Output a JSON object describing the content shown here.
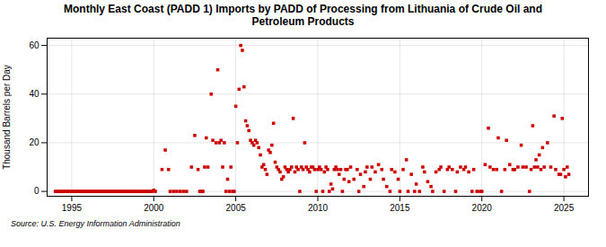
{
  "chart_data": {
    "type": "scatter",
    "title": "Monthly East Coast (PADD 1) Imports by PADD of Processing from Lithuania of Crude Oil and\nPetroleum Products",
    "ylabel": "Thousand Barrels per Day",
    "source": "Source: U.S. Energy Information Administration",
    "color": "#cc0000",
    "marker": "square",
    "grid": true,
    "xlim": [
      1993.5,
      2026.5
    ],
    "ylim": [
      -2,
      63
    ],
    "xticks": [
      1995,
      2000,
      2005,
      2010,
      2015,
      2020,
      2025
    ],
    "yticks": [
      0,
      20,
      40,
      60
    ],
    "x": [
      1994.0,
      1994.1,
      1994.2,
      1994.3,
      1994.4,
      1994.5,
      1994.6,
      1994.7,
      1994.8,
      1994.9,
      1995.0,
      1995.1,
      1995.2,
      1995.3,
      1995.4,
      1995.5,
      1995.6,
      1995.7,
      1995.8,
      1995.9,
      1996.0,
      1996.1,
      1996.2,
      1996.3,
      1996.4,
      1996.5,
      1996.6,
      1996.7,
      1996.8,
      1996.9,
      1997.0,
      1997.1,
      1997.2,
      1997.3,
      1997.4,
      1997.5,
      1997.6,
      1997.7,
      1997.8,
      1997.9,
      1998.0,
      1998.1,
      1998.2,
      1998.3,
      1998.4,
      1998.5,
      1998.6,
      1998.7,
      1998.8,
      1998.9,
      1999.0,
      1999.1,
      1999.2,
      1999.3,
      1999.4,
      1999.5,
      1999.6,
      1999.7,
      1999.8,
      1999.9,
      2000.0,
      2000.1,
      2000.5,
      2000.7,
      2000.9,
      2001.0,
      2001.2,
      2001.4,
      2001.6,
      2001.8,
      2002.0,
      2002.3,
      2002.5,
      2002.7,
      2002.8,
      2002.9,
      2003.0,
      2003.1,
      2003.2,
      2003.3,
      2003.5,
      2003.6,
      2003.8,
      2003.9,
      2004.0,
      2004.1,
      2004.2,
      2004.3,
      2004.4,
      2004.5,
      2004.6,
      2004.7,
      2004.8,
      2004.9,
      2005.0,
      2005.1,
      2005.2,
      2005.3,
      2005.4,
      2005.5,
      2005.6,
      2005.7,
      2005.8,
      2005.9,
      2006.0,
      2006.1,
      2006.2,
      2006.3,
      2006.4,
      2006.5,
      2006.6,
      2006.7,
      2006.8,
      2006.9,
      2007.0,
      2007.1,
      2007.2,
      2007.3,
      2007.4,
      2007.5,
      2007.6,
      2007.7,
      2007.8,
      2007.9,
      2008.0,
      2008.1,
      2008.2,
      2008.3,
      2008.4,
      2008.5,
      2008.6,
      2008.7,
      2008.8,
      2008.9,
      2009.0,
      2009.1,
      2009.2,
      2009.3,
      2009.4,
      2009.5,
      2009.6,
      2009.7,
      2009.8,
      2009.9,
      2010.0,
      2010.1,
      2010.2,
      2010.3,
      2010.4,
      2010.5,
      2010.6,
      2010.7,
      2010.8,
      2010.9,
      2011.0,
      2011.1,
      2011.2,
      2011.3,
      2011.4,
      2011.5,
      2011.6,
      2011.7,
      2011.8,
      2011.9,
      2012.0,
      2012.2,
      2012.4,
      2012.5,
      2012.6,
      2012.8,
      2012.9,
      2013.0,
      2013.2,
      2013.3,
      2013.5,
      2013.7,
      2013.9,
      2014.0,
      2014.2,
      2014.4,
      2014.5,
      2014.7,
      2014.9,
      2015.0,
      2015.2,
      2015.4,
      2015.5,
      2015.7,
      2015.9,
      2016.0,
      2016.2,
      2016.4,
      2016.5,
      2016.7,
      2016.9,
      2017.0,
      2017.2,
      2017.4,
      2017.5,
      2017.7,
      2017.9,
      2018.0,
      2018.2,
      2018.4,
      2018.5,
      2018.7,
      2018.9,
      2019.0,
      2019.2,
      2019.4,
      2019.5,
      2019.7,
      2019.9,
      2020.0,
      2020.2,
      2020.4,
      2020.5,
      2020.7,
      2020.9,
      2021.0,
      2021.2,
      2021.4,
      2021.5,
      2021.7,
      2021.9,
      2022.0,
      2022.2,
      2022.4,
      2022.5,
      2022.7,
      2022.9,
      2023.0,
      2023.1,
      2023.2,
      2023.3,
      2023.4,
      2023.5,
      2023.6,
      2023.7,
      2023.8,
      2024.0,
      2024.2,
      2024.4,
      2024.5,
      2024.7,
      2024.8,
      2024.9,
      2025.0,
      2025.1,
      2025.2,
      2025.3
    ],
    "values": [
      0,
      0,
      0,
      0,
      0,
      0,
      0,
      0,
      0,
      0,
      0,
      0,
      0,
      0,
      0,
      0,
      0,
      0,
      0,
      0,
      0,
      0,
      0,
      0,
      0,
      0,
      0,
      0,
      0,
      0,
      0,
      0,
      0,
      0,
      0,
      0,
      0,
      0,
      0,
      0,
      0,
      0,
      0,
      0,
      0,
      0,
      0,
      0,
      0,
      0,
      0,
      0,
      0,
      0,
      0,
      0,
      0,
      0,
      0,
      0,
      0.5,
      0,
      9,
      17,
      9,
      0,
      0,
      0,
      0,
      0,
      0,
      10,
      23,
      9,
      0,
      0,
      0,
      10,
      22,
      10,
      40,
      21,
      20,
      50,
      20,
      21,
      10,
      20,
      0,
      5,
      0,
      10,
      0,
      0,
      35,
      20,
      42,
      60,
      58,
      43,
      29,
      27,
      25,
      21,
      20,
      19,
      21,
      20,
      18,
      15,
      10,
      11,
      9,
      7,
      17,
      16,
      19,
      28,
      12,
      10,
      9,
      8,
      5,
      6,
      10,
      9,
      8,
      9,
      10,
      30,
      8,
      10,
      9,
      0,
      10,
      9,
      20,
      10,
      9,
      8,
      10,
      10,
      9,
      0,
      9,
      10,
      9,
      0,
      8,
      10,
      9,
      0,
      3,
      1,
      9,
      10,
      9,
      7,
      9,
      0,
      5,
      9,
      9,
      4,
      10,
      5,
      9,
      0,
      7,
      2,
      8,
      10,
      5,
      10,
      8,
      11,
      9,
      5,
      2,
      0,
      9,
      8,
      5,
      0,
      9,
      13,
      0,
      7,
      0,
      3,
      0,
      10,
      8,
      4,
      2,
      0,
      8,
      9,
      10,
      0,
      9,
      10,
      9,
      0,
      8,
      10,
      9,
      10,
      8,
      0,
      9,
      0,
      0,
      0,
      11,
      26,
      10,
      9,
      9,
      22,
      0,
      9,
      21,
      11,
      9,
      9,
      10,
      19,
      10,
      10,
      0,
      9,
      27,
      10,
      13,
      10,
      15,
      9,
      18,
      10,
      20,
      10,
      31,
      9,
      7,
      7,
      30,
      9,
      6,
      10,
      7
    ]
  }
}
